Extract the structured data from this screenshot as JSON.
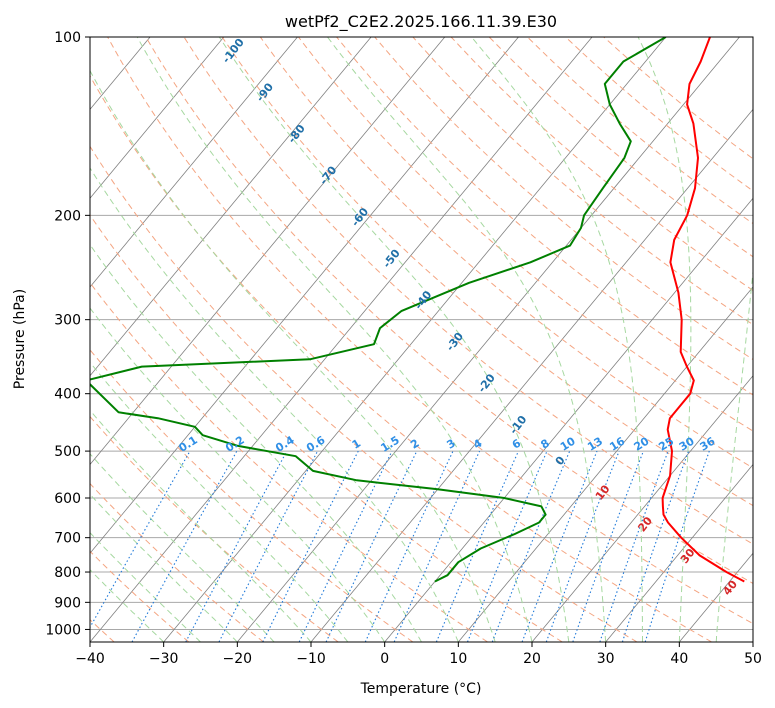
{
  "chart_data": {
    "type": "line",
    "title": "wetPf2_C2E2.2025.166.11.39.E30",
    "xlabel": "Temperature (°C)",
    "ylabel": "Pressure (hPa)",
    "xlim": [
      -40,
      50
    ],
    "ylim": [
      1050,
      100
    ],
    "y_scale": "log",
    "grid": true,
    "x_ticks": [
      -40,
      -30,
      -20,
      -10,
      0,
      10,
      20,
      30,
      40,
      50
    ],
    "y_ticks": [
      100,
      200,
      300,
      400,
      500,
      600,
      700,
      800,
      900,
      1000
    ],
    "series": [
      {
        "color": "#ff0000",
        "values": [
          {
            "p": 830,
            "t": 42
          },
          {
            "p": 800,
            "t": 38.5
          },
          {
            "p": 750,
            "t": 33
          },
          {
            "p": 700,
            "t": 28.5
          },
          {
            "p": 660,
            "t": 25
          },
          {
            "p": 640,
            "t": 23.5
          },
          {
            "p": 620,
            "t": 22.5
          },
          {
            "p": 600,
            "t": 21.5
          },
          {
            "p": 550,
            "t": 20
          },
          {
            "p": 500,
            "t": 17.5
          },
          {
            "p": 460,
            "t": 14.5
          },
          {
            "p": 440,
            "t": 13.5
          },
          {
            "p": 420,
            "t": 13.5
          },
          {
            "p": 400,
            "t": 13.5
          },
          {
            "p": 380,
            "t": 12.5
          },
          {
            "p": 360,
            "t": 10
          },
          {
            "p": 340,
            "t": 7.5
          },
          {
            "p": 300,
            "t": 4
          },
          {
            "p": 270,
            "t": 0.5
          },
          {
            "p": 240,
            "t": -4
          },
          {
            "p": 220,
            "t": -6
          },
          {
            "p": 200,
            "t": -7
          },
          {
            "p": 180,
            "t": -9
          },
          {
            "p": 160,
            "t": -12
          },
          {
            "p": 140,
            "t": -16.5
          },
          {
            "p": 130,
            "t": -19.5
          },
          {
            "p": 120,
            "t": -21.5
          },
          {
            "p": 110,
            "t": -22.5
          },
          {
            "p": 100,
            "t": -24
          }
        ]
      },
      {
        "color": "#008000",
        "values": [
          {
            "p": 830,
            "t": 0
          },
          {
            "p": 810,
            "t": 1
          },
          {
            "p": 770,
            "t": 1
          },
          {
            "p": 730,
            "t": 2.5
          },
          {
            "p": 690,
            "t": 5.5
          },
          {
            "p": 660,
            "t": 7.5
          },
          {
            "p": 640,
            "t": 7.5
          },
          {
            "p": 620,
            "t": 6
          },
          {
            "p": 600,
            "t": 0
          },
          {
            "p": 580,
            "t": -10
          },
          {
            "p": 560,
            "t": -22
          },
          {
            "p": 540,
            "t": -29
          },
          {
            "p": 510,
            "t": -33
          },
          {
            "p": 490,
            "t": -42
          },
          {
            "p": 470,
            "t": -48
          },
          {
            "p": 455,
            "t": -50
          },
          {
            "p": 440,
            "t": -56
          },
          {
            "p": 430,
            "t": -62
          },
          {
            "p": 380,
            "t": -70
          },
          {
            "p": 360,
            "t": -64
          },
          {
            "p": 350,
            "t": -42
          },
          {
            "p": 330,
            "t": -35
          },
          {
            "p": 310,
            "t": -36
          },
          {
            "p": 290,
            "t": -35
          },
          {
            "p": 260,
            "t": -29
          },
          {
            "p": 240,
            "t": -23
          },
          {
            "p": 225,
            "t": -19.5
          },
          {
            "p": 210,
            "t": -20
          },
          {
            "p": 200,
            "t": -21
          },
          {
            "p": 180,
            "t": -21.5
          },
          {
            "p": 160,
            "t": -22
          },
          {
            "p": 150,
            "t": -23
          },
          {
            "p": 140,
            "t": -26.5
          },
          {
            "p": 130,
            "t": -30
          },
          {
            "p": 120,
            "t": -33
          },
          {
            "p": 110,
            "t": -33
          },
          {
            "p": 100,
            "t": -30
          }
        ]
      }
    ],
    "dry_adiabat_labels": [
      "-100",
      "-90",
      "-80",
      "-70",
      "-60",
      "-50",
      "-40",
      "-30",
      "-20",
      "-10",
      "0",
      "10",
      "20",
      "30",
      "40"
    ],
    "mixing_ratio_labels": [
      "0.1",
      "0.2",
      "0.4",
      "0.6",
      "1",
      "1.5",
      "2",
      "3",
      "4",
      "6",
      "8",
      "10",
      "13",
      "16",
      "20",
      "25",
      "30",
      "36"
    ],
    "colors": {
      "isotherm": "#808080",
      "isobar": "#a8a8a8",
      "dry_adiabat": "#f4a582",
      "moist_adiabat": "#a6d8a0",
      "mixing_ratio": "#1e78d8",
      "adiabat_label_cold": "#1f6fa8",
      "adiabat_label_warm": "#d62728"
    }
  }
}
